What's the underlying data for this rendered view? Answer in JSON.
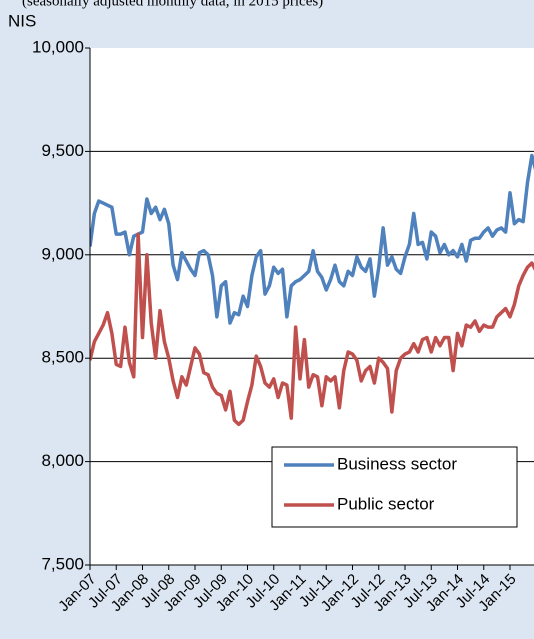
{
  "chart_data": {
    "type": "line",
    "title": "(seasonally adjusted monthly data, in 2015 prices)",
    "y_label": "NIS",
    "categories": [
      "Jan-07",
      null,
      null,
      null,
      null,
      null,
      "Jul-07",
      null,
      null,
      null,
      null,
      null,
      "Jan-08",
      null,
      null,
      null,
      null,
      null,
      "Jul-08",
      null,
      null,
      null,
      null,
      null,
      "Jan-09",
      null,
      null,
      null,
      null,
      null,
      "Jul-09",
      null,
      null,
      null,
      null,
      null,
      "Jan-10",
      null,
      null,
      null,
      null,
      null,
      "Jul-10",
      null,
      null,
      null,
      null,
      null,
      "Jan-11",
      null,
      null,
      null,
      null,
      null,
      "Jul-11",
      null,
      null,
      null,
      null,
      null,
      "Jan-12",
      null,
      null,
      null,
      null,
      null,
      "Jul-12",
      null,
      null,
      null,
      null,
      null,
      "Jan-13",
      null,
      null,
      null,
      null,
      null,
      "Jul-13",
      null,
      null,
      null,
      null,
      null,
      "Jan-14",
      null,
      null,
      null,
      null,
      null,
      "Jul-14",
      null,
      null,
      null,
      null,
      null,
      "Jan-15",
      null,
      null,
      null,
      null,
      null,
      null
    ],
    "series": [
      {
        "name": "Business sector",
        "color": "#4f81bd",
        "values": [
          9040,
          9200,
          9260,
          9250,
          9240,
          9230,
          9100,
          9100,
          9110,
          9000,
          9090,
          9100,
          9110,
          9270,
          9200,
          9230,
          9170,
          9220,
          9150,
          8950,
          8880,
          9010,
          8970,
          8930,
          8900,
          9010,
          9020,
          9000,
          8900,
          8700,
          8850,
          8870,
          8670,
          8720,
          8710,
          8800,
          8750,
          8900,
          8990,
          9020,
          8810,
          8850,
          8940,
          8910,
          8930,
          8700,
          8850,
          8870,
          8880,
          8900,
          8920,
          9020,
          8920,
          8890,
          8830,
          8880,
          8950,
          8870,
          8850,
          8920,
          8900,
          8990,
          8940,
          8920,
          8980,
          8800,
          8940,
          9130,
          8950,
          8990,
          8930,
          8910,
          8990,
          9050,
          9200,
          9050,
          9060,
          8980,
          9110,
          9090,
          9010,
          9050,
          9000,
          9020,
          8990,
          9050,
          8970,
          9070,
          9080,
          9080,
          9110,
          9130,
          9090,
          9120,
          9130,
          9110,
          9300,
          9150,
          9170,
          9160,
          9350,
          9480,
          9400
        ]
      },
      {
        "name": "Public sector",
        "color": "#c0504d",
        "values": [
          8490,
          8580,
          8620,
          8660,
          8720,
          8620,
          8470,
          8460,
          8650,
          8480,
          8410,
          9100,
          8600,
          9000,
          8670,
          8500,
          8730,
          8580,
          8500,
          8390,
          8310,
          8410,
          8370,
          8460,
          8550,
          8520,
          8430,
          8420,
          8360,
          8330,
          8320,
          8250,
          8340,
          8200,
          8180,
          8200,
          8290,
          8370,
          8510,
          8460,
          8380,
          8360,
          8400,
          8310,
          8380,
          8370,
          8210,
          8650,
          8400,
          8590,
          8360,
          8420,
          8410,
          8270,
          8410,
          8390,
          8410,
          8260,
          8440,
          8530,
          8520,
          8490,
          8390,
          8440,
          8460,
          8380,
          8500,
          8480,
          8450,
          8240,
          8440,
          8500,
          8520,
          8530,
          8570,
          8530,
          8590,
          8600,
          8530,
          8600,
          8560,
          8600,
          8600,
          8440,
          8620,
          8560,
          8660,
          8650,
          8680,
          8630,
          8660,
          8650,
          8650,
          8700,
          8720,
          8740,
          8700,
          8760,
          8850,
          8900,
          8940,
          8960,
          8920
        ]
      }
    ],
    "ylim": [
      7500,
      10000
    ],
    "yticks": [
      {
        "value": 7500,
        "label": "7,500"
      },
      {
        "value": 8000,
        "label": "8,000"
      },
      {
        "value": 8500,
        "label": "8,500"
      },
      {
        "value": 9000,
        "label": "9,000"
      },
      {
        "value": 9500,
        "label": "9,500"
      },
      {
        "value": 10000,
        "label": "10,000"
      }
    ],
    "grid": true,
    "legend": "lower-right"
  }
}
